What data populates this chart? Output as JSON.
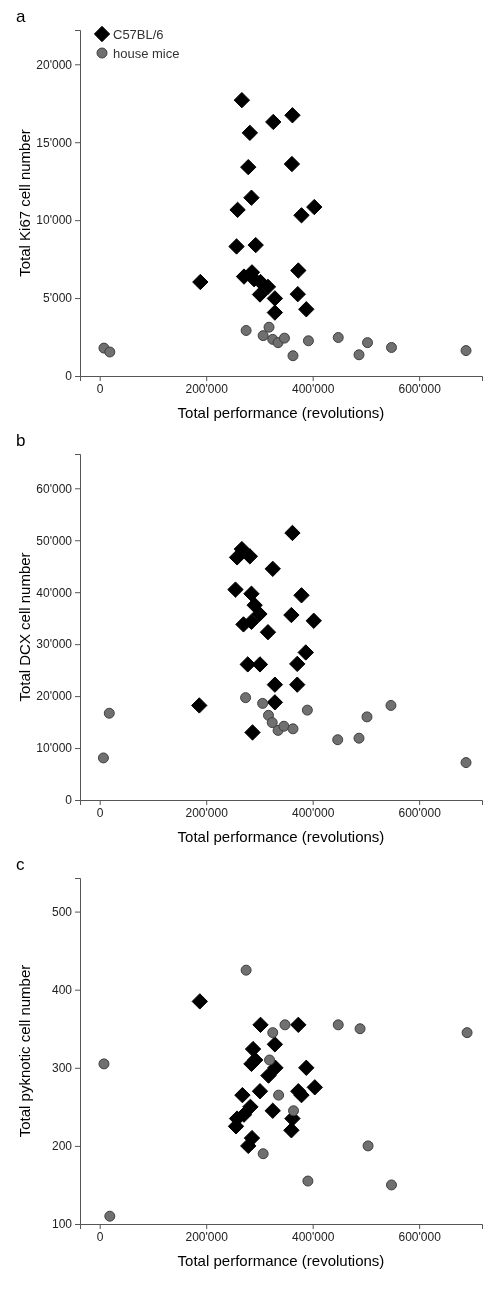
{
  "chart_data": [
    {
      "type": "scatter",
      "title": "a",
      "xlabel": "Total performance (revolutions)",
      "ylabel": "Total Ki67 cell number",
      "xlim": [
        -37000,
        718000
      ],
      "ylim": [
        0,
        22200
      ],
      "xticks": [
        {
          "value": 0,
          "label": "0"
        },
        {
          "value": 200000,
          "label": "200'000"
        },
        {
          "value": 400000,
          "label": "400'000"
        },
        {
          "value": 600000,
          "label": "600'000"
        }
      ],
      "yticks": [
        0,
        {
          "value": 5000,
          "label": "5'000"
        },
        {
          "value": 10000,
          "label": "10'000"
        },
        {
          "value": 15000,
          "label": "15'000"
        },
        {
          "value": 20000,
          "label": "20'000"
        }
      ],
      "legend": "top left",
      "grid": false,
      "series": [
        {
          "name": "C57BL/6",
          "color": "#000000",
          "marker": "diamond",
          "x": [
            267000,
            362000,
            326000,
            282000,
            279000,
            361000,
            285000,
            259000,
            403000,
            379000,
            257000,
            293000,
            271000,
            286000,
            290000,
            302000,
            316000,
            373000,
            301000,
            329000,
            372000,
            329000,
            388000,
            189000
          ],
          "values": [
            17700,
            16730,
            16300,
            15600,
            13400,
            13600,
            11440,
            10660,
            10840,
            10310,
            8310,
            8400,
            6380,
            6650,
            6210,
            6030,
            5720,
            6770,
            5230,
            4980,
            5250,
            4070,
            4280,
            6030
          ]
        },
        {
          "name": "house mice",
          "color": "#707070",
          "marker": "circle",
          "x": [
            8000,
            19000,
            275000,
            307000,
            318000,
            325000,
            335000,
            347000,
            363000,
            392000,
            448000,
            487000,
            503000,
            548000,
            688000
          ],
          "values": [
            1790,
            1540,
            2920,
            2590,
            3130,
            2350,
            2140,
            2430,
            1300,
            2260,
            2470,
            1360,
            2140,
            1830,
            1630
          ]
        }
      ]
    },
    {
      "type": "scatter",
      "title": "b",
      "xlabel": "Total performance (revolutions)",
      "ylabel": "Total DCX cell number",
      "xlim": [
        -37000,
        718000
      ],
      "ylim": [
        0,
        66600
      ],
      "xticks": [
        {
          "value": 0,
          "label": "0"
        },
        {
          "value": 200000,
          "label": "200'000"
        },
        {
          "value": 400000,
          "label": "400'000"
        },
        {
          "value": 600000,
          "label": "600'000"
        }
      ],
      "yticks": [
        0,
        {
          "value": 10000,
          "label": "10'000"
        },
        {
          "value": 20000,
          "label": "20'000"
        },
        {
          "value": 30000,
          "label": "30'000"
        },
        {
          "value": 40000,
          "label": "40'000"
        },
        {
          "value": 50000,
          "label": "50'000"
        },
        {
          "value": 60000,
          "label": "60'000"
        }
      ],
      "grid": false,
      "series": [
        {
          "color": "#000000",
          "marker": "diamond",
          "x": [
            362000,
            267000,
            258000,
            282000,
            325000,
            255000,
            285000,
            379000,
            291000,
            300000,
            360000,
            402000,
            270000,
            285000,
            316000,
            387000,
            278000,
            301000,
            371000,
            329000,
            371000,
            329000,
            187000,
            287000
          ],
          "values": [
            51400,
            48300,
            46700,
            46900,
            44500,
            40500,
            39700,
            39400,
            37500,
            35800,
            35600,
            34500,
            33800,
            34300,
            32300,
            28400,
            26100,
            26100,
            26200,
            22200,
            22200,
            18800,
            18200,
            13000
          ]
        },
        {
          "color": "#707070",
          "marker": "circle",
          "x": [
            7000,
            18000,
            274000,
            306000,
            317000,
            324000,
            335000,
            346000,
            363000,
            390000,
            447000,
            487000,
            502000,
            547000,
            688000
          ],
          "values": [
            8100,
            16700,
            19700,
            18600,
            16300,
            14900,
            13400,
            14200,
            13700,
            17300,
            11600,
            11900,
            16000,
            18200,
            7200
          ]
        }
      ]
    },
    {
      "type": "scatter",
      "title": "c",
      "xlabel": "Total performance (revolutions)",
      "ylabel": "Total pyknotic cell number",
      "xlim": [
        -37000,
        718000
      ],
      "ylim": [
        100,
        543
      ],
      "xticks": [
        {
          "value": 0,
          "label": "0"
        },
        {
          "value": 200000,
          "label": "200'000"
        },
        {
          "value": 400000,
          "label": "400'000"
        },
        {
          "value": 600000,
          "label": "600'000"
        }
      ],
      "yticks": [
        100,
        200,
        300,
        400,
        500
      ],
      "grid": false,
      "series": [
        {
          "color": "#000000",
          "marker": "diamond",
          "x": [
            188000,
            302000,
            373000,
            329000,
            288000,
            292000,
            285000,
            330000,
            388000,
            317000,
            404000,
            301000,
            373000,
            379000,
            268000,
            325000,
            283000,
            271000,
            258000,
            362000,
            256000,
            360000,
            286000,
            279000
          ],
          "values": [
            385,
            355,
            355,
            330,
            324,
            310,
            305,
            300,
            300,
            290,
            275,
            270,
            270,
            265,
            265,
            245,
            250,
            240,
            235,
            235,
            225,
            220,
            210,
            200
          ]
        },
        {
          "color": "#707070",
          "marker": "circle",
          "x": [
            275000,
            8000,
            19000,
            325000,
            348000,
            448000,
            489000,
            690000,
            319000,
            336000,
            364000,
            307000,
            391000,
            504000,
            548000
          ],
          "values": [
            425,
            305,
            110,
            345,
            355,
            355,
            350,
            345,
            310,
            265,
            245,
            190,
            155,
            200,
            150
          ]
        }
      ]
    }
  ]
}
